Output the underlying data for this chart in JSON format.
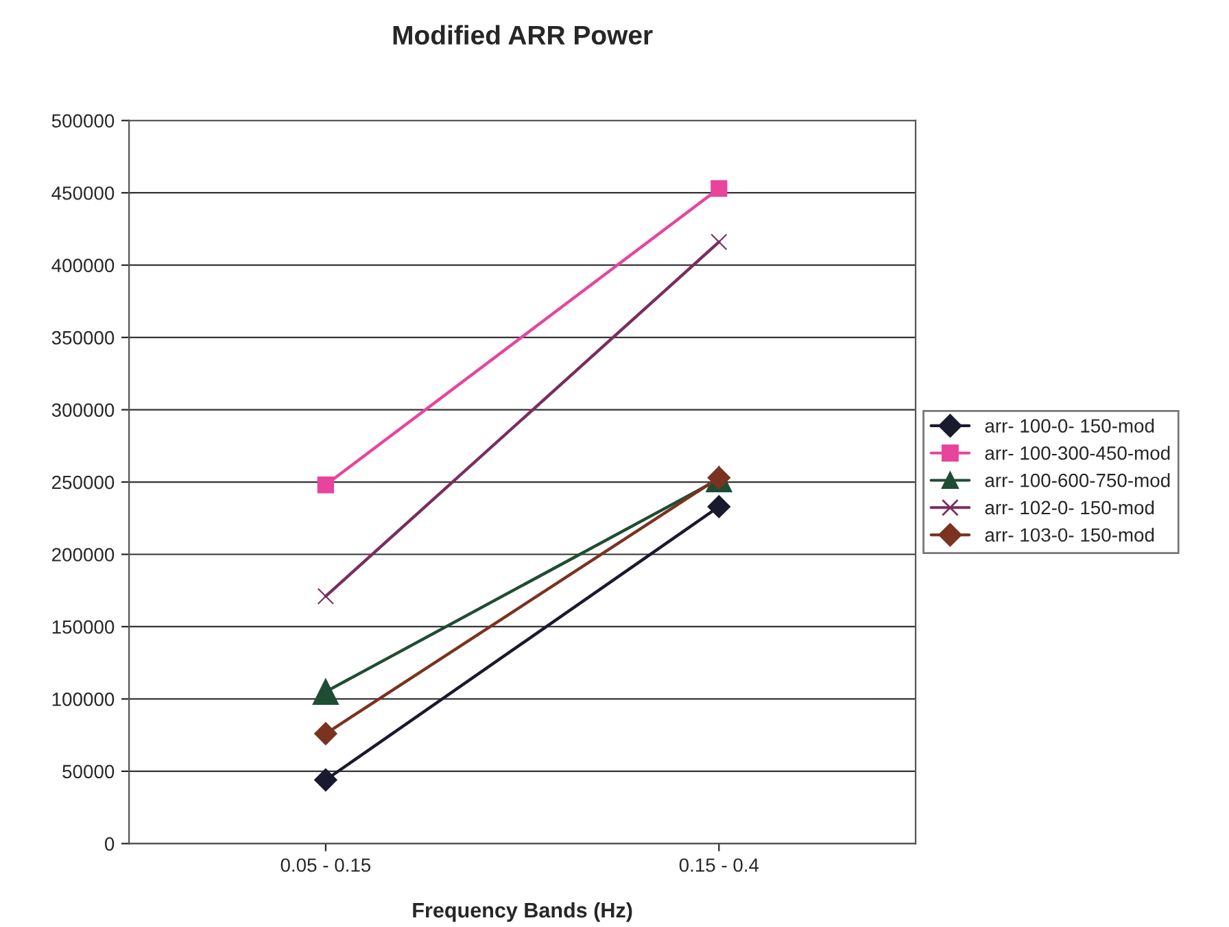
{
  "chart_data": {
    "type": "line",
    "title": "Modified ARR Power",
    "xlabel": "Frequency Bands (Hz)",
    "categories": [
      "0.05 - 0.15",
      "0.15 - 0.4"
    ],
    "series": [
      {
        "name": "arr- 100-0- 150-mod",
        "color": "#1a1a2e",
        "marker": "diamond",
        "values": [
          44000,
          233000
        ]
      },
      {
        "name": "arr- 100-300-450-mod",
        "color": "#e8449c",
        "marker": "square",
        "values": [
          248000,
          453000
        ]
      },
      {
        "name": "arr- 100-600-750-mod",
        "color": "#1f4d33",
        "marker": "triangle",
        "values": [
          105000,
          252000
        ]
      },
      {
        "name": "arr- 102-0- 150-mod",
        "color": "#7a2d5e",
        "marker": "cross",
        "values": [
          171000,
          416000
        ]
      },
      {
        "name": "arr- 103-0- 150-mod",
        "color": "#7a3320",
        "marker": "diamond",
        "values": [
          76000,
          253000
        ]
      }
    ],
    "ylim": [
      0,
      500000
    ],
    "yticks": [
      0,
      50000,
      100000,
      150000,
      200000,
      250000,
      300000,
      350000,
      400000,
      450000,
      500000
    ],
    "grid": "y",
    "legend": "right",
    "line_style": "solid"
  }
}
